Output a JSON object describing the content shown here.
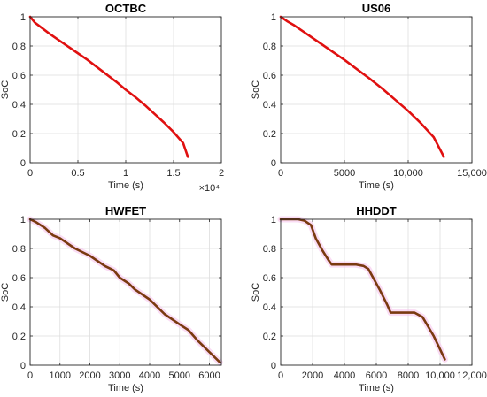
{
  "chart_data": [
    {
      "type": "line",
      "title": "OCTBC",
      "xlabel": "Time (s)",
      "ylabel": "SoC",
      "xlim": [
        0,
        20000
      ],
      "ylim": [
        0,
        1
      ],
      "xticks": [
        0,
        5000,
        10000,
        15000,
        20000
      ],
      "xtick_labels": [
        "0",
        "0.5",
        "1",
        "1.5",
        "2"
      ],
      "x_exponent_label": "×10⁴",
      "yticks": [
        0,
        0.2,
        0.4,
        0.6,
        0.8,
        1
      ],
      "ytick_labels": [
        "0",
        "0.2",
        "0.4",
        "0.6",
        "0.8",
        "1"
      ],
      "grid": true,
      "series": [
        {
          "color": "#e01010",
          "x": [
            0,
            500,
            1000,
            2000,
            3000,
            4000,
            5000,
            6000,
            7000,
            8000,
            9000,
            10000,
            11000,
            12000,
            13000,
            14000,
            15000,
            16000,
            16500
          ],
          "y": [
            1.0,
            0.96,
            0.935,
            0.885,
            0.84,
            0.795,
            0.75,
            0.705,
            0.655,
            0.605,
            0.555,
            0.5,
            0.45,
            0.395,
            0.335,
            0.275,
            0.21,
            0.135,
            0.04
          ]
        }
      ]
    },
    {
      "type": "line",
      "title": "US06",
      "xlabel": "Time (s)",
      "ylabel": "SoC",
      "xlim": [
        0,
        15000
      ],
      "ylim": [
        0,
        1
      ],
      "xticks": [
        0,
        5000,
        10000,
        15000
      ],
      "xtick_labels": [
        "0",
        "5000",
        "10,000",
        "15,000"
      ],
      "yticks": [
        0,
        0.2,
        0.4,
        0.6,
        0.8,
        1
      ],
      "ytick_labels": [
        "0",
        "0.2",
        "0.4",
        "0.6",
        "0.8",
        "1"
      ],
      "grid": true,
      "series": [
        {
          "color": "#e01010",
          "x": [
            0,
            500,
            1000,
            2000,
            3000,
            4000,
            5000,
            6000,
            7000,
            8000,
            9000,
            10000,
            11000,
            12000,
            12800
          ],
          "y": [
            1.0,
            0.97,
            0.945,
            0.885,
            0.825,
            0.765,
            0.705,
            0.64,
            0.575,
            0.505,
            0.43,
            0.355,
            0.27,
            0.175,
            0.04
          ]
        }
      ]
    },
    {
      "type": "line",
      "title": "HWFET",
      "xlabel": "Time (s)",
      "ylabel": "SoC",
      "xlim": [
        0,
        6400
      ],
      "ylim": [
        0,
        1
      ],
      "xticks": [
        0,
        1000,
        2000,
        3000,
        4000,
        5000,
        6000
      ],
      "xtick_labels": [
        "0",
        "1000",
        "2000",
        "3000",
        "4000",
        "5000",
        "6000"
      ],
      "yticks": [
        0,
        0.2,
        0.4,
        0.6,
        0.8,
        1
      ],
      "ytick_labels": [
        "0",
        "0.2",
        "0.4",
        "0.6",
        "0.8",
        "1"
      ],
      "grid": true,
      "series": [
        {
          "color": "#7a3a10",
          "x": [
            0,
            200,
            500,
            765,
            1000,
            1500,
            2000,
            2500,
            2800,
            3000,
            3300,
            3500,
            4000,
            4200,
            4500,
            5000,
            5300,
            5600,
            6000,
            6350
          ],
          "y": [
            1.0,
            0.98,
            0.94,
            0.89,
            0.87,
            0.8,
            0.75,
            0.68,
            0.65,
            0.6,
            0.56,
            0.52,
            0.45,
            0.41,
            0.35,
            0.28,
            0.24,
            0.17,
            0.09,
            0.02
          ]
        }
      ]
    },
    {
      "type": "line",
      "title": "HHDDT",
      "xlabel": "Time (s)",
      "ylabel": "SoC",
      "xlim": [
        0,
        12000
      ],
      "ylim": [
        0,
        1
      ],
      "xticks": [
        0,
        2000,
        4000,
        6000,
        8000,
        10000,
        12000
      ],
      "xtick_labels": [
        "0",
        "2000",
        "4000",
        "6000",
        "8000",
        "10,000",
        "12,000"
      ],
      "yticks": [
        0,
        0.2,
        0.4,
        0.6,
        0.8,
        1
      ],
      "ytick_labels": [
        "0",
        "0.2",
        "0.4",
        "0.6",
        "0.8",
        "1"
      ],
      "grid": true,
      "series": [
        {
          "color": "#7a3a10",
          "x": [
            0,
            1100,
            1500,
            1900,
            2200,
            2600,
            3000,
            3200,
            4000,
            4700,
            5200,
            5500,
            6200,
            6700,
            6900,
            8000,
            8400,
            8900,
            9600,
            10300
          ],
          "y": [
            1.0,
            1.0,
            0.99,
            0.96,
            0.87,
            0.79,
            0.72,
            0.69,
            0.69,
            0.69,
            0.68,
            0.66,
            0.52,
            0.41,
            0.36,
            0.36,
            0.36,
            0.33,
            0.2,
            0.04
          ]
        }
      ]
    }
  ]
}
